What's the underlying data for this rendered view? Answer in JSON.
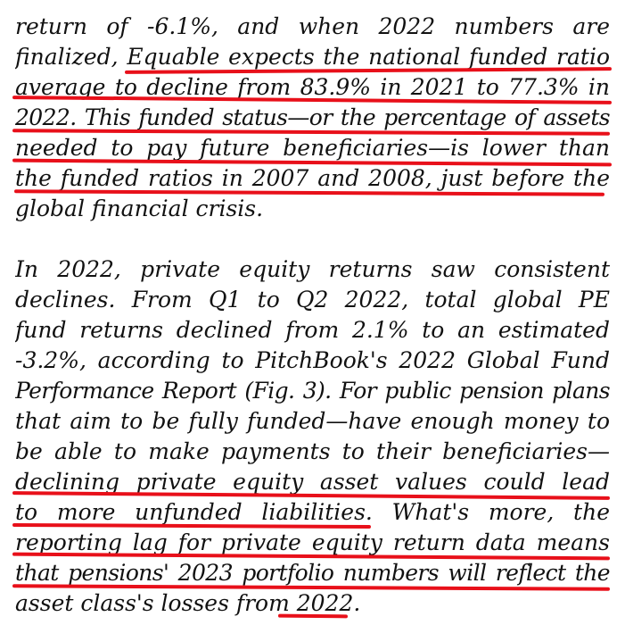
{
  "paragraph1": {
    "lines": [
      "return of -6.1%, and when 2022 numbers are",
      "finalized, Equable expects the national funded ratio",
      "average to decline from 83.9% in 2021 to 77.3% in",
      "2022. This funded status—or the percentage of assets",
      "needed to pay future beneficiaries—is lower than",
      "the funded ratios in 2007 and 2008, just before the",
      "global financial crisis."
    ]
  },
  "paragraph2": {
    "lines": [
      "In 2022, private equity returns saw consistent",
      "declines. From Q1 to Q2 2022, total global PE",
      "fund returns declined from 2.1% to an estimated",
      "-3.2%, according to PitchBook's 2022 Global Fund",
      "Performance Report (Fig. 3). For public pension plans",
      "that aim to be fully funded—have enough money to",
      "be able to make payments to their beneficiaries—",
      "declining private equity asset values could lead",
      "to more unfunded liabilities. What's more, the",
      "reporting lag for private equity return data means",
      "that pensions' 2023 portfolio numbers will reflect the",
      "asset class's losses from 2022."
    ]
  },
  "annotation_color": "#e8101a"
}
